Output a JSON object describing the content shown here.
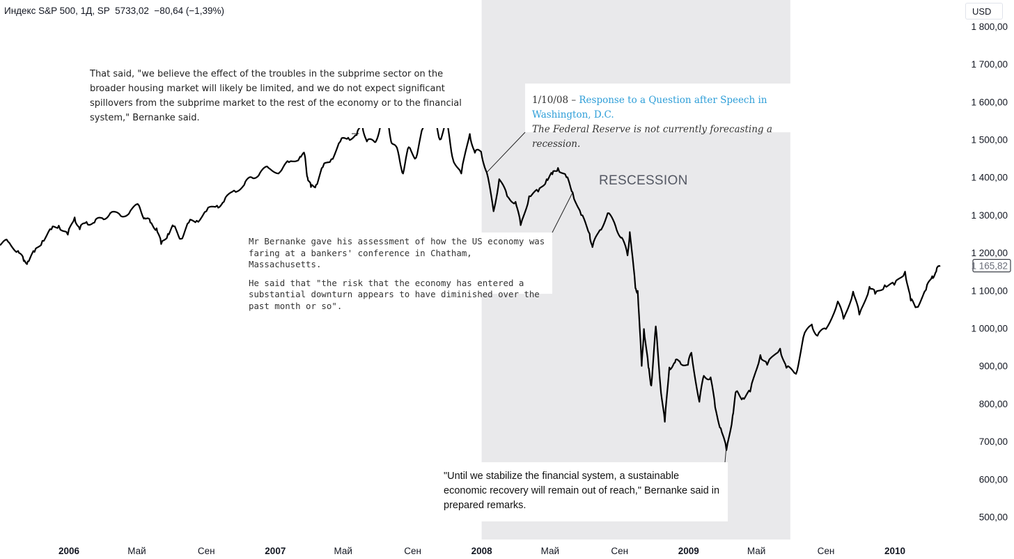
{
  "header": {
    "symbol_line": "Индекс S&P 500, 1Д, SP",
    "price": "5733,02",
    "change": "−80,64 (−1,39%)"
  },
  "currency_button": "USD",
  "colors": {
    "line": "#000000",
    "recession_band": "#e9e9eb",
    "link": "#2e9ed8",
    "price_tag_border": "#131722"
  },
  "annotations": {
    "note1": "That said, \"we believe the effect of the troubles in the subprime sector on the broader housing market will likely be limited, and we do not expect significant spillovers from the subprime market to the rest of the economy or to the financial system,\" Bernanke said.",
    "note2": {
      "date": "1/10/08 –",
      "link": "Response to a Question after Speech in Washington, D.C.",
      "quote": "The Federal Reserve is not currently forecasting a recession."
    },
    "note3": {
      "p1": "Mr Bernanke gave his assessment of how the US economy was faring at a bankers' conference in Chatham, Massachusetts.",
      "p2": "He said that \"the risk that the economy has entered a substantial downturn appears to have diminished over the past month or so\"."
    },
    "note4": "\"Until we stabilize the financial system, a sustainable economic recovery will remain out of reach,\" Bernanke said in prepared remarks.",
    "recession_label": "RESCESSION"
  },
  "chart_data": {
    "type": "line",
    "series": [
      {
        "values": [
          [
            "2005-09-01",
            1220
          ],
          [
            "2005-09-15",
            1230
          ],
          [
            "2005-10-03",
            1205
          ],
          [
            "2005-10-13",
            1178
          ],
          [
            "2005-10-20",
            1177
          ],
          [
            "2005-11-01",
            1202
          ],
          [
            "2005-11-15",
            1232
          ],
          [
            "2005-12-01",
            1262
          ],
          [
            "2005-12-14",
            1272
          ],
          [
            "2005-12-30",
            1248
          ],
          [
            "2006-01-11",
            1294
          ],
          [
            "2006-01-20",
            1262
          ],
          [
            "2006-02-01",
            1282
          ],
          [
            "2006-02-15",
            1280
          ],
          [
            "2006-03-01",
            1292
          ],
          [
            "2006-03-15",
            1305
          ],
          [
            "2006-04-03",
            1297
          ],
          [
            "2006-04-20",
            1312
          ],
          [
            "2006-05-05",
            1325
          ],
          [
            "2006-05-15",
            1292
          ],
          [
            "2006-05-25",
            1280
          ],
          [
            "2006-06-05",
            1265
          ],
          [
            "2006-06-13",
            1223
          ],
          [
            "2006-06-25",
            1250
          ],
          [
            "2006-07-05",
            1270
          ],
          [
            "2006-07-18",
            1237
          ],
          [
            "2006-08-01",
            1280
          ],
          [
            "2006-08-15",
            1285
          ],
          [
            "2006-09-01",
            1310
          ],
          [
            "2006-09-20",
            1325
          ],
          [
            "2006-10-02",
            1335
          ],
          [
            "2006-10-20",
            1365
          ],
          [
            "2006-11-07",
            1380
          ],
          [
            "2006-11-20",
            1400
          ],
          [
            "2006-12-05",
            1412
          ],
          [
            "2006-12-20",
            1425
          ],
          [
            "2007-01-10",
            1415
          ],
          [
            "2007-01-25",
            1440
          ],
          [
            "2007-02-14",
            1455
          ],
          [
            "2007-02-22",
            1459
          ],
          [
            "2007-02-27",
            1400
          ],
          [
            "2007-03-05",
            1374
          ],
          [
            "2007-03-14",
            1380
          ],
          [
            "2007-03-26",
            1427
          ],
          [
            "2007-04-10",
            1448
          ],
          [
            "2007-04-26",
            1495
          ],
          [
            "2007-05-10",
            1505
          ],
          [
            "2007-05-25",
            1512
          ],
          [
            "2007-06-04",
            1538
          ],
          [
            "2007-06-12",
            1495
          ],
          [
            "2007-06-26",
            1493
          ],
          [
            "2007-07-05",
            1530
          ],
          [
            "2007-07-19",
            1553
          ],
          [
            "2007-07-26",
            1490
          ],
          [
            "2007-08-06",
            1468
          ],
          [
            "2007-08-15",
            1410
          ],
          [
            "2007-08-25",
            1480
          ],
          [
            "2007-09-07",
            1452
          ],
          [
            "2007-09-19",
            1530
          ],
          [
            "2007-10-01",
            1545
          ],
          [
            "2007-10-09",
            1565
          ],
          [
            "2007-10-19",
            1500
          ],
          [
            "2007-10-31",
            1549
          ],
          [
            "2007-11-10",
            1455
          ],
          [
            "2007-11-26",
            1410
          ],
          [
            "2007-12-11",
            1515
          ],
          [
            "2007-12-20",
            1465
          ],
          [
            "2007-12-31",
            1468
          ],
          [
            "2008-01-10",
            1413
          ],
          [
            "2008-01-22",
            1310
          ],
          [
            "2008-02-01",
            1395
          ],
          [
            "2008-02-15",
            1350
          ],
          [
            "2008-03-01",
            1335
          ],
          [
            "2008-03-10",
            1273
          ],
          [
            "2008-03-25",
            1350
          ],
          [
            "2008-04-10",
            1362
          ],
          [
            "2008-04-25",
            1395
          ],
          [
            "2008-05-05",
            1408
          ],
          [
            "2008-05-15",
            1425
          ],
          [
            "2008-05-30",
            1400
          ],
          [
            "2008-06-10",
            1360
          ],
          [
            "2008-06-25",
            1300
          ],
          [
            "2008-07-10",
            1250
          ],
          [
            "2008-07-15",
            1215
          ],
          [
            "2008-07-28",
            1260
          ],
          [
            "2008-08-11",
            1305
          ],
          [
            "2008-08-25",
            1270
          ],
          [
            "2008-09-05",
            1240
          ],
          [
            "2008-09-15",
            1193
          ],
          [
            "2008-09-19",
            1255
          ],
          [
            "2008-09-29",
            1106
          ],
          [
            "2008-10-03",
            1099
          ],
          [
            "2008-10-10",
            900
          ],
          [
            "2008-10-14",
            998
          ],
          [
            "2008-10-22",
            896
          ],
          [
            "2008-10-27",
            848
          ],
          [
            "2008-11-04",
            1005
          ],
          [
            "2008-11-12",
            852
          ],
          [
            "2008-11-20",
            752
          ],
          [
            "2008-11-28",
            896
          ],
          [
            "2008-12-08",
            909
          ],
          [
            "2008-12-16",
            913
          ],
          [
            "2008-12-31",
            903
          ],
          [
            "2009-01-06",
            935
          ],
          [
            "2009-01-20",
            805
          ],
          [
            "2009-01-28",
            874
          ],
          [
            "2009-02-09",
            870
          ],
          [
            "2009-02-17",
            790
          ],
          [
            "2009-02-27",
            735
          ],
          [
            "2009-03-09",
            677
          ],
          [
            "2009-03-20",
            768
          ],
          [
            "2009-03-26",
            832
          ],
          [
            "2009-04-07",
            815
          ],
          [
            "2009-04-20",
            832
          ],
          [
            "2009-05-08",
            929
          ],
          [
            "2009-05-20",
            903
          ],
          [
            "2009-06-12",
            946
          ],
          [
            "2009-06-23",
            895
          ],
          [
            "2009-07-10",
            879
          ],
          [
            "2009-07-23",
            976
          ],
          [
            "2009-08-07",
            1010
          ],
          [
            "2009-08-17",
            980
          ],
          [
            "2009-09-01",
            998
          ],
          [
            "2009-09-22",
            1071
          ],
          [
            "2009-10-02",
            1025
          ],
          [
            "2009-10-19",
            1097
          ],
          [
            "2009-10-30",
            1036
          ],
          [
            "2009-11-17",
            1110
          ],
          [
            "2009-11-27",
            1091
          ],
          [
            "2009-12-14",
            1114
          ],
          [
            "2009-12-31",
            1115
          ],
          [
            "2010-01-19",
            1150
          ],
          [
            "2010-01-29",
            1073
          ],
          [
            "2010-02-08",
            1056
          ],
          [
            "2010-02-25",
            1102
          ],
          [
            "2010-03-08",
            1138
          ],
          [
            "2010-03-15",
            1150
          ],
          [
            "2010-03-22",
            1165.82
          ]
        ]
      }
    ],
    "x_ticks": [
      {
        "date": "2006-01-01",
        "label": "2006",
        "bold": true
      },
      {
        "date": "2006-05-01",
        "label": "Май",
        "bold": false
      },
      {
        "date": "2006-09-01",
        "label": "Сен",
        "bold": false
      },
      {
        "date": "2007-01-01",
        "label": "2007",
        "bold": true
      },
      {
        "date": "2007-05-01",
        "label": "Май",
        "bold": false
      },
      {
        "date": "2007-09-01",
        "label": "Сен",
        "bold": false
      },
      {
        "date": "2008-01-01",
        "label": "2008",
        "bold": true
      },
      {
        "date": "2008-05-01",
        "label": "Май",
        "bold": false
      },
      {
        "date": "2008-09-01",
        "label": "Сен",
        "bold": false
      },
      {
        "date": "2009-01-01",
        "label": "2009",
        "bold": true
      },
      {
        "date": "2009-05-01",
        "label": "Май",
        "bold": false
      },
      {
        "date": "2009-09-01",
        "label": "Сен",
        "bold": false
      },
      {
        "date": "2010-01-01",
        "label": "2010",
        "bold": true
      }
    ],
    "y_ticks": [
      {
        "value": 1800,
        "label": "1 800,00"
      },
      {
        "value": 1700,
        "label": "1 700,00"
      },
      {
        "value": 1600,
        "label": "1 600,00"
      },
      {
        "value": 1500,
        "label": "1 500,00"
      },
      {
        "value": 1400,
        "label": "1 400,00"
      },
      {
        "value": 1300,
        "label": "1 300,00"
      },
      {
        "value": 1200,
        "label": "1 200,00"
      },
      {
        "value": 1100,
        "label": "1 100,00"
      },
      {
        "value": 1000,
        "label": "1 000,00"
      },
      {
        "value": 900,
        "label": "900,00"
      },
      {
        "value": 800,
        "label": "800,00"
      },
      {
        "value": 700,
        "label": "700,00"
      },
      {
        "value": 600,
        "label": "600,00"
      },
      {
        "value": 500,
        "label": "500,00"
      }
    ],
    "last_price_label": "1 165,82",
    "last_price_value": 1165.82,
    "x_range": [
      "2005-09-01",
      "2010-04-28"
    ],
    "y_range": [
      440,
      1870
    ],
    "recession_band": [
      "2008-01-01",
      "2009-06-30"
    ],
    "callout_targets": [
      {
        "note": "note1",
        "date": "2007-05-29",
        "value": 1516
      },
      {
        "note": "note2",
        "date": "2008-01-10",
        "value": 1413
      },
      {
        "note": "note3",
        "date": "2008-06-10",
        "value": 1360
      },
      {
        "note": "note4",
        "date": "2009-03-09",
        "value": 690
      }
    ]
  }
}
